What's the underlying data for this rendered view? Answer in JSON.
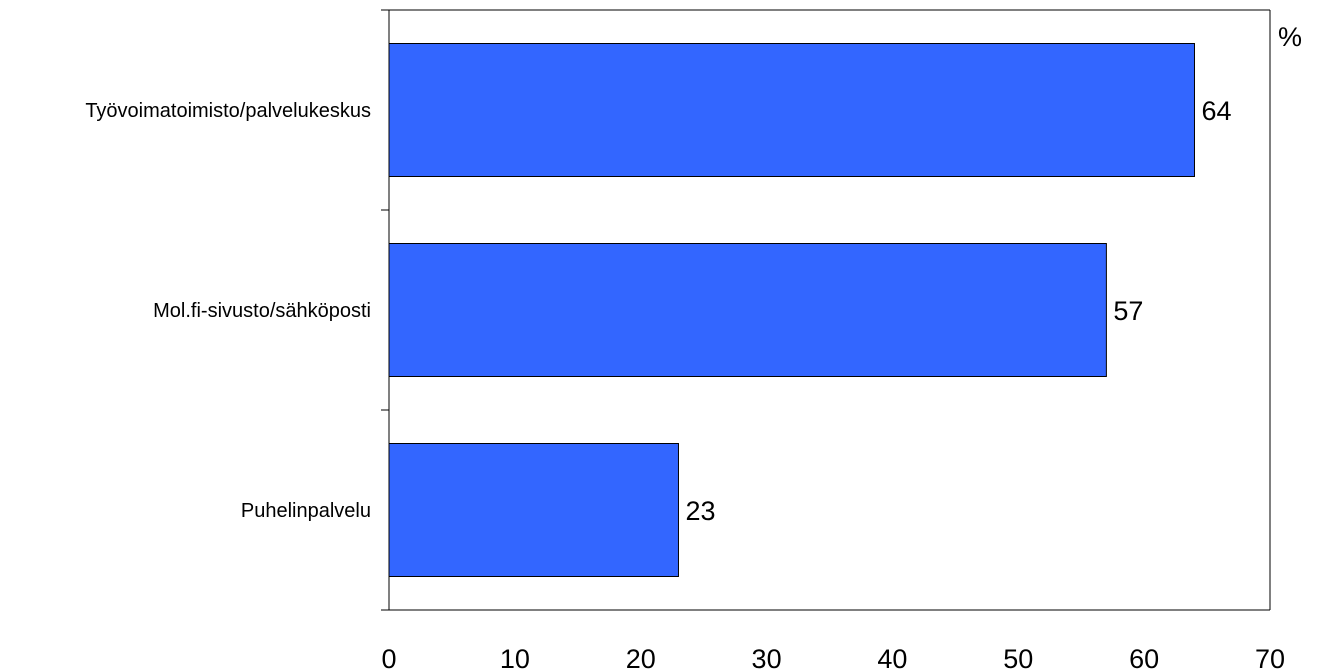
{
  "chart_data": {
    "type": "bar",
    "orientation": "horizontal",
    "categories": [
      "Työvoimatoimisto/palvelukeskus",
      "Mol.fi-sivusto/sähköposti",
      "Puhelinpalvelu"
    ],
    "values": [
      64,
      57,
      23
    ],
    "data_labels": [
      "64",
      "57",
      "23"
    ],
    "unit_label": "%",
    "xlim": [
      0,
      70
    ],
    "x_ticks": [
      0,
      10,
      20,
      30,
      40,
      50,
      60,
      70
    ],
    "x_tick_labels": [
      "0",
      "10",
      "20",
      "30",
      "40",
      "50",
      "60",
      "70"
    ],
    "grid": false,
    "legend": "none",
    "bar_color": "#3366FF",
    "bar_edge_color": "#000000"
  }
}
